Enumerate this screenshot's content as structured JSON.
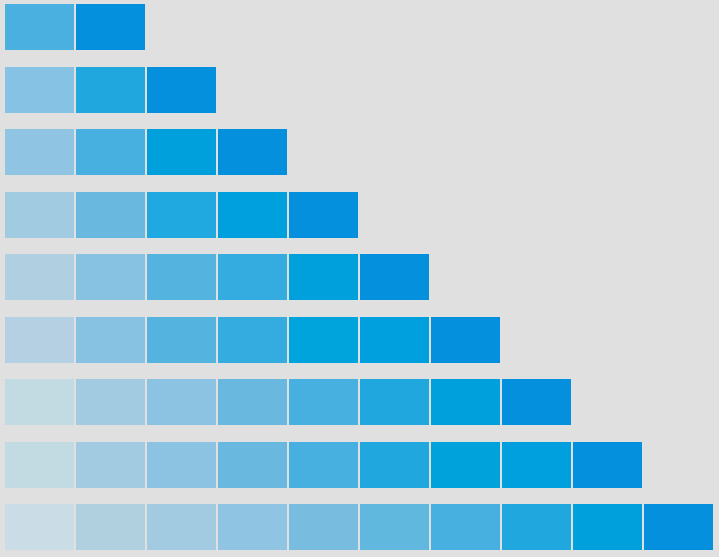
{
  "swatch_rows": [
    {
      "colors": [
        "#4ab0e0",
        "#0590de"
      ]
    },
    {
      "colors": [
        "#85c2e3",
        "#20a8de",
        "#0590de"
      ]
    },
    {
      "colors": [
        "#8fc4e2",
        "#48b0e0",
        "#00a0dc",
        "#0590de"
      ]
    },
    {
      "colors": [
        "#a0cbe0",
        "#68b8e0",
        "#20a8e0",
        "#00a0de",
        "#0590de"
      ]
    },
    {
      "colors": [
        "#b0d0e2",
        "#88c2e2",
        "#55b3e0",
        "#35acdf",
        "#00a0dc",
        "#0590de"
      ]
    },
    {
      "colors": [
        "#b4d0e2",
        "#88c2e2",
        "#55b3e0",
        "#35acdf",
        "#00a4dc",
        "#00a0de",
        "#0590de"
      ]
    },
    {
      "colors": [
        "#c2dae2",
        "#a2cae0",
        "#8cc2e2",
        "#68b8e0",
        "#48b0e0",
        "#20a8de",
        "#00a0dc",
        "#0590de"
      ]
    },
    {
      "colors": [
        "#c2dae2",
        "#a2cae0",
        "#8cc2e2",
        "#68b8e0",
        "#48b0e0",
        "#20a8de",
        "#00a2dc",
        "#00a0de",
        "#0590de"
      ]
    },
    {
      "colors": [
        "#cadce6",
        "#b0d0e0",
        "#a2cae0",
        "#8fc4e2",
        "#78bde0",
        "#60b8de",
        "#48b0e0",
        "#20a8de",
        "#00a0dc",
        "#0590de"
      ]
    }
  ]
}
